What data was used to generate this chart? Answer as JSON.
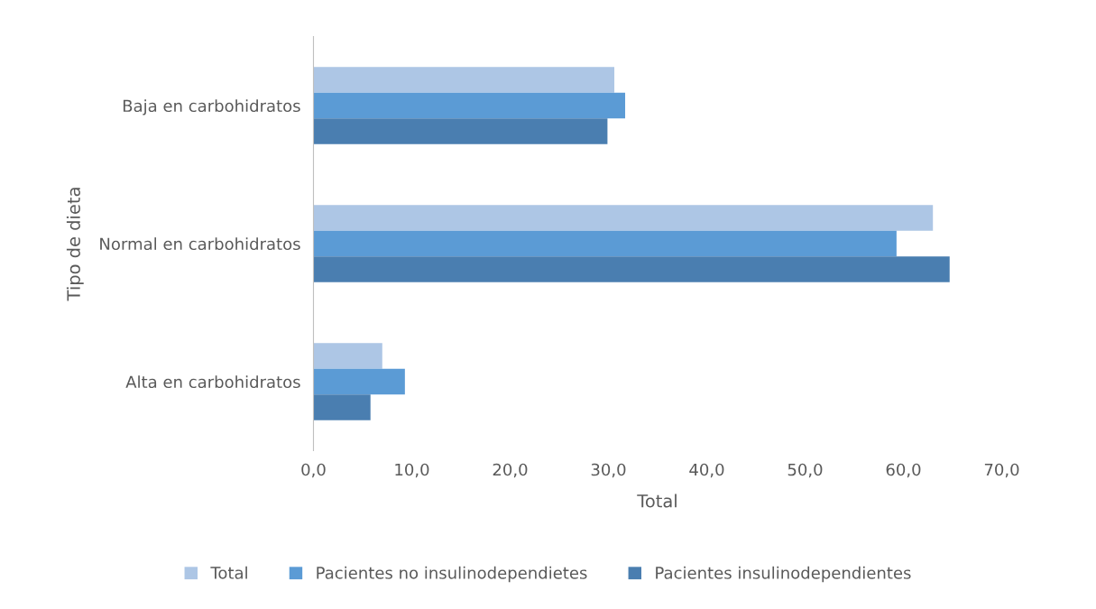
{
  "chart_data": {
    "type": "bar",
    "orientation": "horizontal",
    "xlabel": "Total",
    "ylabel": "Tipo de dieta",
    "categories": [
      "Baja en carbohidratos",
      "Normal en carbohidratos",
      "Alta en carbohidratos"
    ],
    "series": [
      {
        "name": "Total",
        "color": "#adc6e5",
        "values": [
          30.6,
          63.0,
          7.0
        ]
      },
      {
        "name": "Pacientes no insulinodependietes",
        "color": "#5b9bd5",
        "values": [
          31.7,
          59.3,
          9.3
        ]
      },
      {
        "name": "Pacientes insulinodependientes",
        "color": "#4a7eb0",
        "values": [
          29.9,
          64.7,
          5.8
        ]
      }
    ],
    "xlim": [
      0,
      70
    ],
    "xticks": [
      {
        "value": 0,
        "label": "0,0"
      },
      {
        "value": 10,
        "label": "10,0"
      },
      {
        "value": 20,
        "label": "20,0"
      },
      {
        "value": 30,
        "label": "30,0"
      },
      {
        "value": 40,
        "label": "40,0"
      },
      {
        "value": 50,
        "label": "50,0"
      },
      {
        "value": 60,
        "label": "60,0"
      },
      {
        "value": 70,
        "label": "70,0"
      }
    ],
    "grid": false,
    "legend": "bottom"
  }
}
